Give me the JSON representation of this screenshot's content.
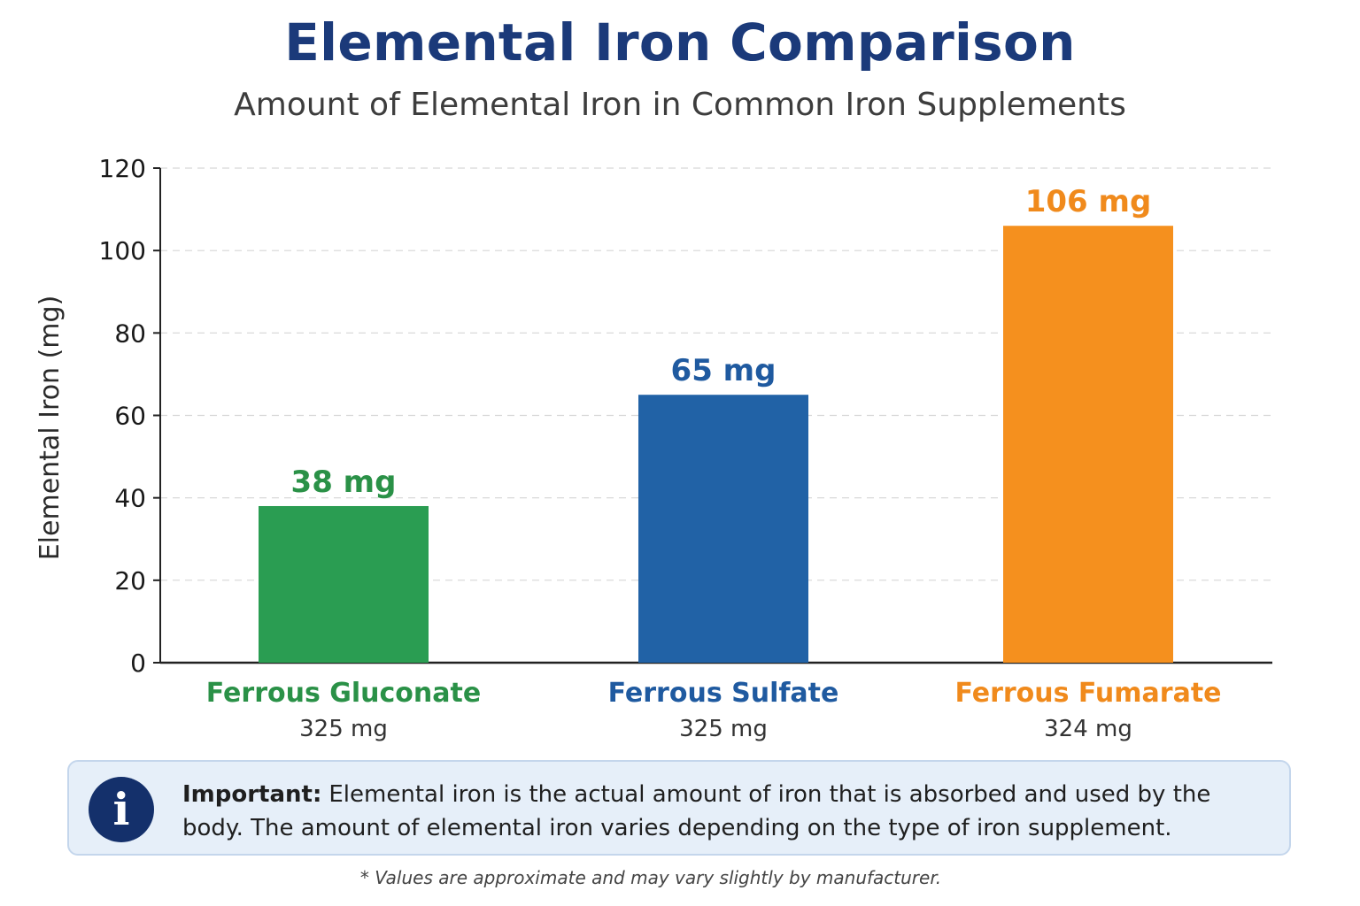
{
  "header": {
    "title": "Elemental Iron Comparison",
    "subtitle": "Amount of Elemental Iron in Common Iron Supplements"
  },
  "chart_data": {
    "type": "bar",
    "title": "Elemental Iron Comparison",
    "subtitle": "Amount of Elemental Iron in Common Iron Supplements",
    "categories": [
      "Ferrous Gluconate",
      "Ferrous Sulfate",
      "Ferrous Fumarate"
    ],
    "category_sublabels": [
      "325 mg",
      "325 mg",
      "324 mg"
    ],
    "values": [
      38,
      65,
      106
    ],
    "value_labels": [
      "38 mg",
      "65 mg",
      "106 mg"
    ],
    "colors": [
      "#2a9d52",
      "#2162a6",
      "#f5901e"
    ],
    "label_colors": [
      "#2a9147",
      "#1f5aa0",
      "#f08a1c"
    ],
    "xlabel": "",
    "ylabel": "Elemental Iron (mg)",
    "ylim": [
      0,
      120
    ],
    "yticks": [
      0,
      20,
      40,
      60,
      80,
      100,
      120
    ],
    "grid": true
  },
  "info": {
    "label": "Important:",
    "text": "Elemental iron is the actual amount of iron that is absorbed and used by the body. The amount of elemental iron varies depending on the type of iron supplement.",
    "icon": "info-icon",
    "icon_glyph": "i"
  },
  "footnote": "* Values are approximate and may vary slightly by manufacturer."
}
